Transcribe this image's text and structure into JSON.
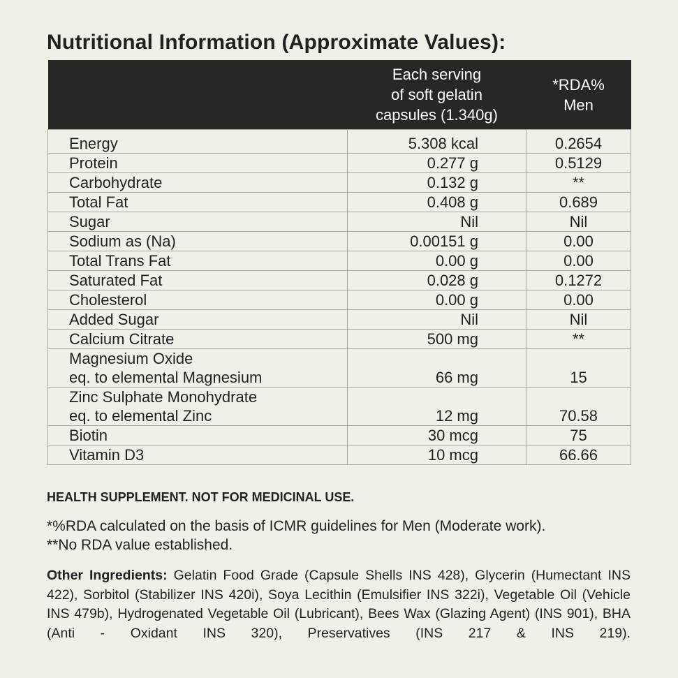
{
  "title": "Nutritional Information (Approximate Values):",
  "table": {
    "headers": {
      "name": "",
      "serving_lines": [
        "Each serving",
        "of soft gelatin",
        "capsules (1.340g)"
      ],
      "rda_lines": [
        "*RDA%",
        "Men"
      ]
    },
    "rows": [
      {
        "name_lines": [
          "Energy"
        ],
        "value": "5.308 kcal",
        "rda": "0.2654"
      },
      {
        "name_lines": [
          "Protein"
        ],
        "value": "0.277 g",
        "rda": "0.5129"
      },
      {
        "name_lines": [
          "Carbohydrate"
        ],
        "value": "0.132 g",
        "rda": "**"
      },
      {
        "name_lines": [
          "Total Fat"
        ],
        "value": "0.408 g",
        "rda": "0.689"
      },
      {
        "name_lines": [
          "Sugar"
        ],
        "value": "Nil",
        "rda": "Nil"
      },
      {
        "name_lines": [
          "Sodium as (Na)"
        ],
        "value": "0.00151 g",
        "rda": "0.00"
      },
      {
        "name_lines": [
          "Total Trans Fat"
        ],
        "value": "0.00 g",
        "rda": "0.00"
      },
      {
        "name_lines": [
          "Saturated Fat"
        ],
        "value": "0.028 g",
        "rda": "0.1272"
      },
      {
        "name_lines": [
          "Cholesterol"
        ],
        "value": "0.00 g",
        "rda": "0.00"
      },
      {
        "name_lines": [
          "Added Sugar"
        ],
        "value": "Nil",
        "rda": "Nil"
      },
      {
        "name_lines": [
          "Calcium Citrate"
        ],
        "value": "500 mg",
        "rda": "**"
      },
      {
        "name_lines": [
          "Magnesium Oxide",
          "eq. to elemental Magnesium"
        ],
        "value": "66 mg",
        "rda": "15"
      },
      {
        "name_lines": [
          "Zinc Sulphate Monohydrate",
          "eq. to elemental Zinc"
        ],
        "value": "12 mg",
        "rda": "70.58"
      },
      {
        "name_lines": [
          "Biotin"
        ],
        "value": "30 mcg",
        "rda": "75"
      },
      {
        "name_lines": [
          "Vitamin D3"
        ],
        "value": "10 mcg",
        "rda": "66.66"
      }
    ]
  },
  "health_statement": "HEALTH SUPPLEMENT. NOT FOR MEDICINAL USE.",
  "notes": [
    "*%RDA calculated on the basis of ICMR guidelines for Men (Moderate work).",
    "**No RDA value established."
  ],
  "ingredients": {
    "label": "Other Ingredients:",
    "lines": [
      "Gelatin Food Grade (Capsule Shells INS 428), Glycerin (Humectant",
      "INS 422), Sorbitol (Stabilizer INS 420i), Soya Lecithin (Emulsifier INS 322i), Vegetable",
      "Oil (Vehicle INS 479b), Hydrogenated Vegetable Oil (Lubricant), Bees Wax (Glazing Agent)",
      "(INS 901), BHA (Anti - Oxidant INS 320), Preservatives (INS 217 & INS 219)."
    ]
  }
}
